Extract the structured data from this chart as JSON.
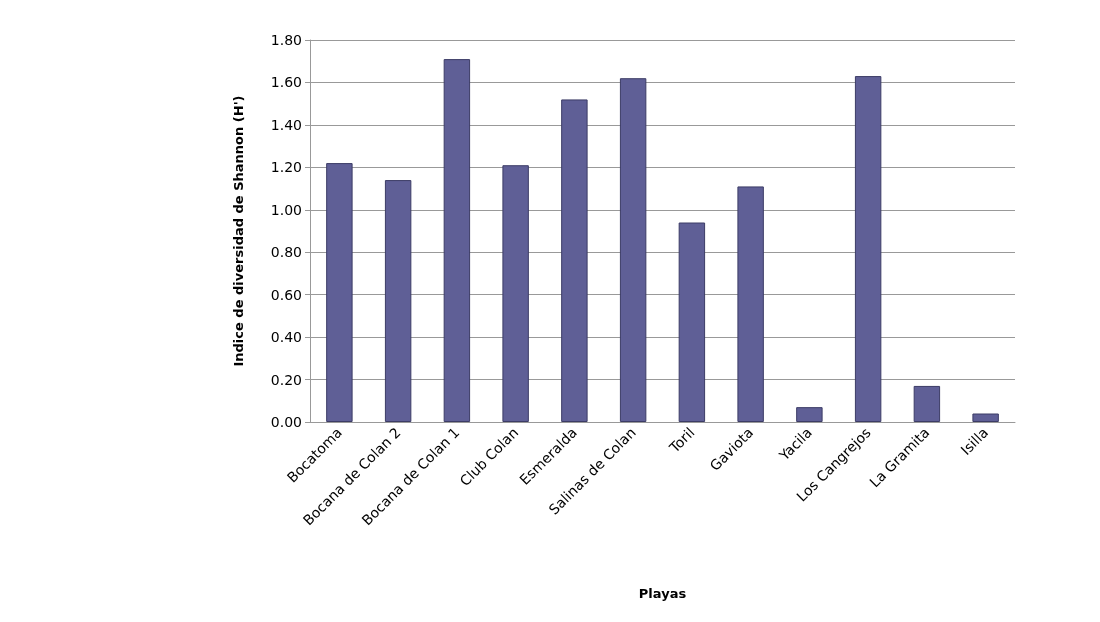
{
  "chart_data": {
    "type": "bar",
    "xlabel": "Playas",
    "ylabel": "Indice de diversidad de Shannon (H')",
    "categories": [
      "Bocatoma",
      "Bocana de Colan 2",
      "Bocana de Colan 1",
      "Club Colan",
      "Esmeralda",
      "Salinas de Colan",
      "Toril",
      "Gaviota",
      "Yacila",
      "Los Cangrejos",
      "La Gramita",
      "Isilla"
    ],
    "values": [
      1.22,
      1.14,
      1.71,
      1.21,
      1.52,
      1.62,
      0.94,
      1.11,
      0.07,
      1.63,
      0.17,
      0.04
    ],
    "color": "#5f5f96",
    "ylim": [
      0,
      1.8
    ],
    "yticks": [
      {
        "value": 0,
        "label": "0.00"
      },
      {
        "value": 0.2,
        "label": "0.20"
      },
      {
        "value": 0.4,
        "label": "0.40"
      },
      {
        "value": 0.6,
        "label": "0.60"
      },
      {
        "value": 0.8,
        "label": "0.80"
      },
      {
        "value": 1,
        "label": "1.00"
      },
      {
        "value": 1.2,
        "label": "1.20"
      },
      {
        "value": 1.4,
        "label": "1.40"
      },
      {
        "value": 1.6,
        "label": "1.60"
      },
      {
        "value": 1.8,
        "label": "1.80"
      }
    ],
    "grid": "y"
  }
}
